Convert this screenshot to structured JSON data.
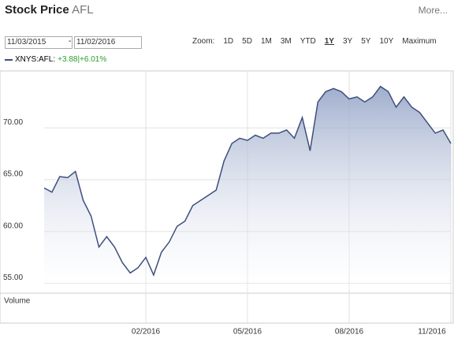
{
  "header": {
    "title": "Stock Price",
    "symbol": "AFL",
    "more": "More..."
  },
  "range": {
    "from": "11/03/2015",
    "dash": "-",
    "to": "11/02/2016"
  },
  "zoom": {
    "label": "Zoom:",
    "options": [
      "1D",
      "5D",
      "1M",
      "3M",
      "YTD",
      "1Y",
      "3Y",
      "5Y",
      "10Y",
      "Maximum"
    ],
    "selected": "1Y"
  },
  "legend": {
    "name": "XNYS:AFL:",
    "change": "+3.88|+6.01%",
    "change_color": "#2a9d2a"
  },
  "volume_label": "Volume",
  "chart_data": {
    "type": "area",
    "color": "#3d4f7c",
    "categories": [
      null,
      null,
      null,
      null,
      null,
      null,
      null,
      null,
      null,
      null,
      null,
      null,
      null,
      "02/2016",
      null,
      null,
      null,
      null,
      null,
      null,
      null,
      null,
      null,
      null,
      null,
      null,
      "05/2016",
      null,
      null,
      null,
      null,
      null,
      null,
      null,
      null,
      null,
      null,
      null,
      null,
      "08/2016",
      null,
      null,
      null,
      null,
      null,
      null,
      null,
      null,
      null,
      null,
      null,
      null,
      "11/2016"
    ],
    "values": [
      64.2,
      63.8,
      65.3,
      65.2,
      65.8,
      63.0,
      61.5,
      58.5,
      59.5,
      58.5,
      57.0,
      56.0,
      56.5,
      57.5,
      55.8,
      58.0,
      59.0,
      60.5,
      61.0,
      62.5,
      63.0,
      63.5,
      64.0,
      66.8,
      68.5,
      69.0,
      68.8,
      69.3,
      69.0,
      69.5,
      69.5,
      69.8,
      69.0,
      71.0,
      67.8,
      72.5,
      73.5,
      73.8,
      73.5,
      72.8,
      73.0,
      72.5,
      73.0,
      74.0,
      73.5,
      72.0,
      73.0,
      72.0,
      71.5,
      70.5,
      69.5,
      69.8,
      68.5
    ],
    "ylim": [
      54.5,
      75.5
    ],
    "yticks": [
      {
        "value": 55,
        "label": "55.00"
      },
      {
        "value": 60,
        "label": "60.00"
      },
      {
        "value": 65,
        "label": "65.00"
      },
      {
        "value": 70,
        "label": "70.00"
      }
    ],
    "grid": true
  }
}
